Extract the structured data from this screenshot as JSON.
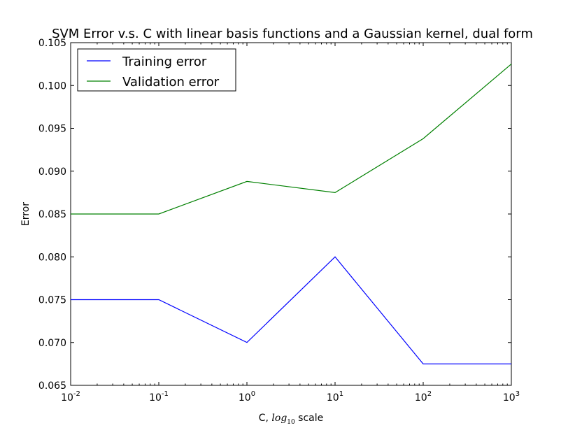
{
  "chart_data": {
    "type": "line",
    "title": "SVM Error v.s. C with linear basis functions and a Gaussian kernel, dual form",
    "xlabel": {
      "prefix": "C, ",
      "math_base": "log",
      "math_sub": "10",
      "suffix": " scale"
    },
    "ylabel": "Error",
    "x_scale": "log",
    "xlim": [
      0.01,
      1000
    ],
    "ylim": [
      0.065,
      0.105
    ],
    "x": [
      0.01,
      0.1,
      1,
      10,
      100,
      1000
    ],
    "x_ticks": [
      {
        "base": "10",
        "exp": "-2"
      },
      {
        "base": "10",
        "exp": "-1"
      },
      {
        "base": "10",
        "exp": "0"
      },
      {
        "base": "10",
        "exp": "1"
      },
      {
        "base": "10",
        "exp": "2"
      },
      {
        "base": "10",
        "exp": "3"
      }
    ],
    "y_ticks": [
      "0.065",
      "0.070",
      "0.075",
      "0.080",
      "0.085",
      "0.090",
      "0.095",
      "0.100",
      "0.105"
    ],
    "grid": false,
    "legend_position": "top-left",
    "series": [
      {
        "name": "Training error",
        "color": "#0000ff",
        "values": [
          0.075,
          0.075,
          0.07,
          0.08,
          0.0675,
          0.0675
        ]
      },
      {
        "name": "Validation error",
        "color": "#008000",
        "values": [
          0.085,
          0.085,
          0.0888,
          0.0875,
          0.0938,
          0.1025
        ]
      }
    ]
  }
}
